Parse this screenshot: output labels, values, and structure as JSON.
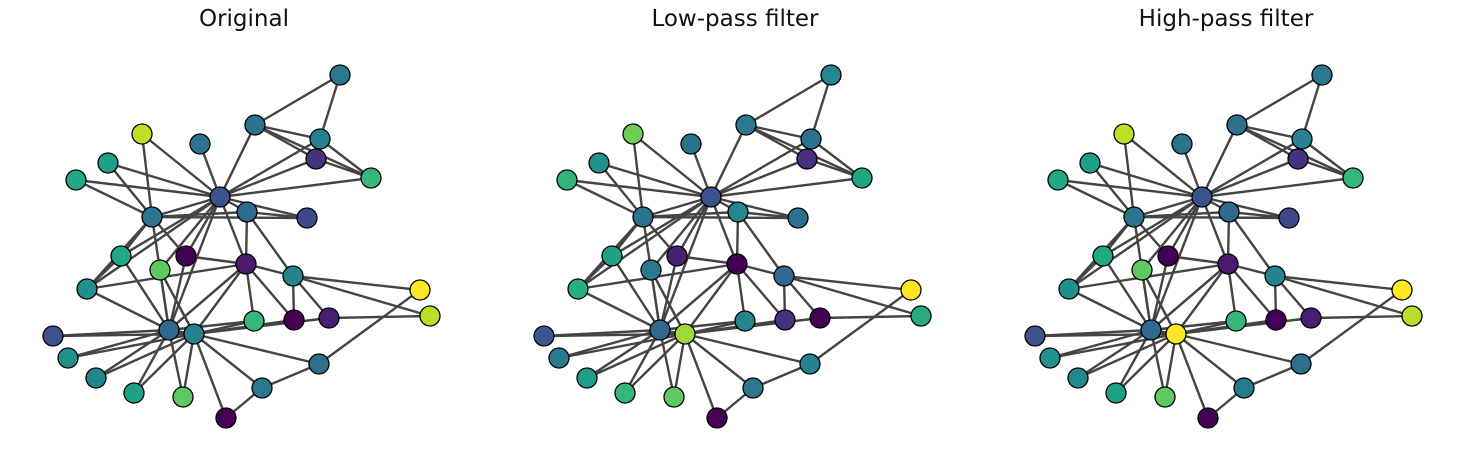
{
  "panels": [
    {
      "title": "Original",
      "node_colors": [
        "#2a788e",
        "#2c728e",
        "#26828e",
        "#46327e",
        "#35b779",
        "#bddf26",
        "#2c728e",
        "#1f9e89",
        "#22a884",
        "#3b528b",
        "#306a8e",
        "#3e4989",
        "#2b748e",
        "#22a884",
        "#440154",
        "#5ec962",
        "#481b6d",
        "#25858e",
        "#fde725",
        "#21908d",
        "#b8de29",
        "#31688e",
        "#3b528b",
        "#440154",
        "#35b779",
        "#481f70",
        "#21918c",
        "#23888e",
        "#2d708e",
        "#1fa188",
        "#5ec962",
        "#2a788e",
        "#440154",
        "#26828e"
      ]
    },
    {
      "title": "Low-pass filter",
      "node_colors": [
        "#24868e",
        "#2a788e",
        "#2c728e",
        "#46327e",
        "#21a685",
        "#6ece58",
        "#2c728e",
        "#21918c",
        "#31b57b",
        "#3b528b",
        "#24868e",
        "#2d708e",
        "#2c728e",
        "#1fa188",
        "#482173",
        "#2a788e",
        "#440154",
        "#31688e",
        "#fde725",
        "#29af7f",
        "#26ad81",
        "#31688e",
        "#38588c",
        "#46327e",
        "#26828e",
        "#440154",
        "#2a788e",
        "#1f9e89",
        "#26828e",
        "#35b779",
        "#5ec962",
        "#2a788e",
        "#440154",
        "#a0da39"
      ]
    },
    {
      "title": "High-pass filter",
      "node_colors": [
        "#2a788e",
        "#2c728e",
        "#26828e",
        "#46327e",
        "#35b779",
        "#bddf26",
        "#2c728e",
        "#1f9e89",
        "#22a884",
        "#3b528b",
        "#306a8e",
        "#3e4989",
        "#2b748e",
        "#22a884",
        "#440154",
        "#5ec962",
        "#481b6d",
        "#25858e",
        "#fde725",
        "#21908d",
        "#b8de29",
        "#31688e",
        "#3b528b",
        "#440154",
        "#35b779",
        "#481f70",
        "#21918c",
        "#23888e",
        "#2d708e",
        "#1fa188",
        "#5ec962",
        "#2a788e",
        "#440154",
        "#fde725"
      ]
    }
  ]
}
